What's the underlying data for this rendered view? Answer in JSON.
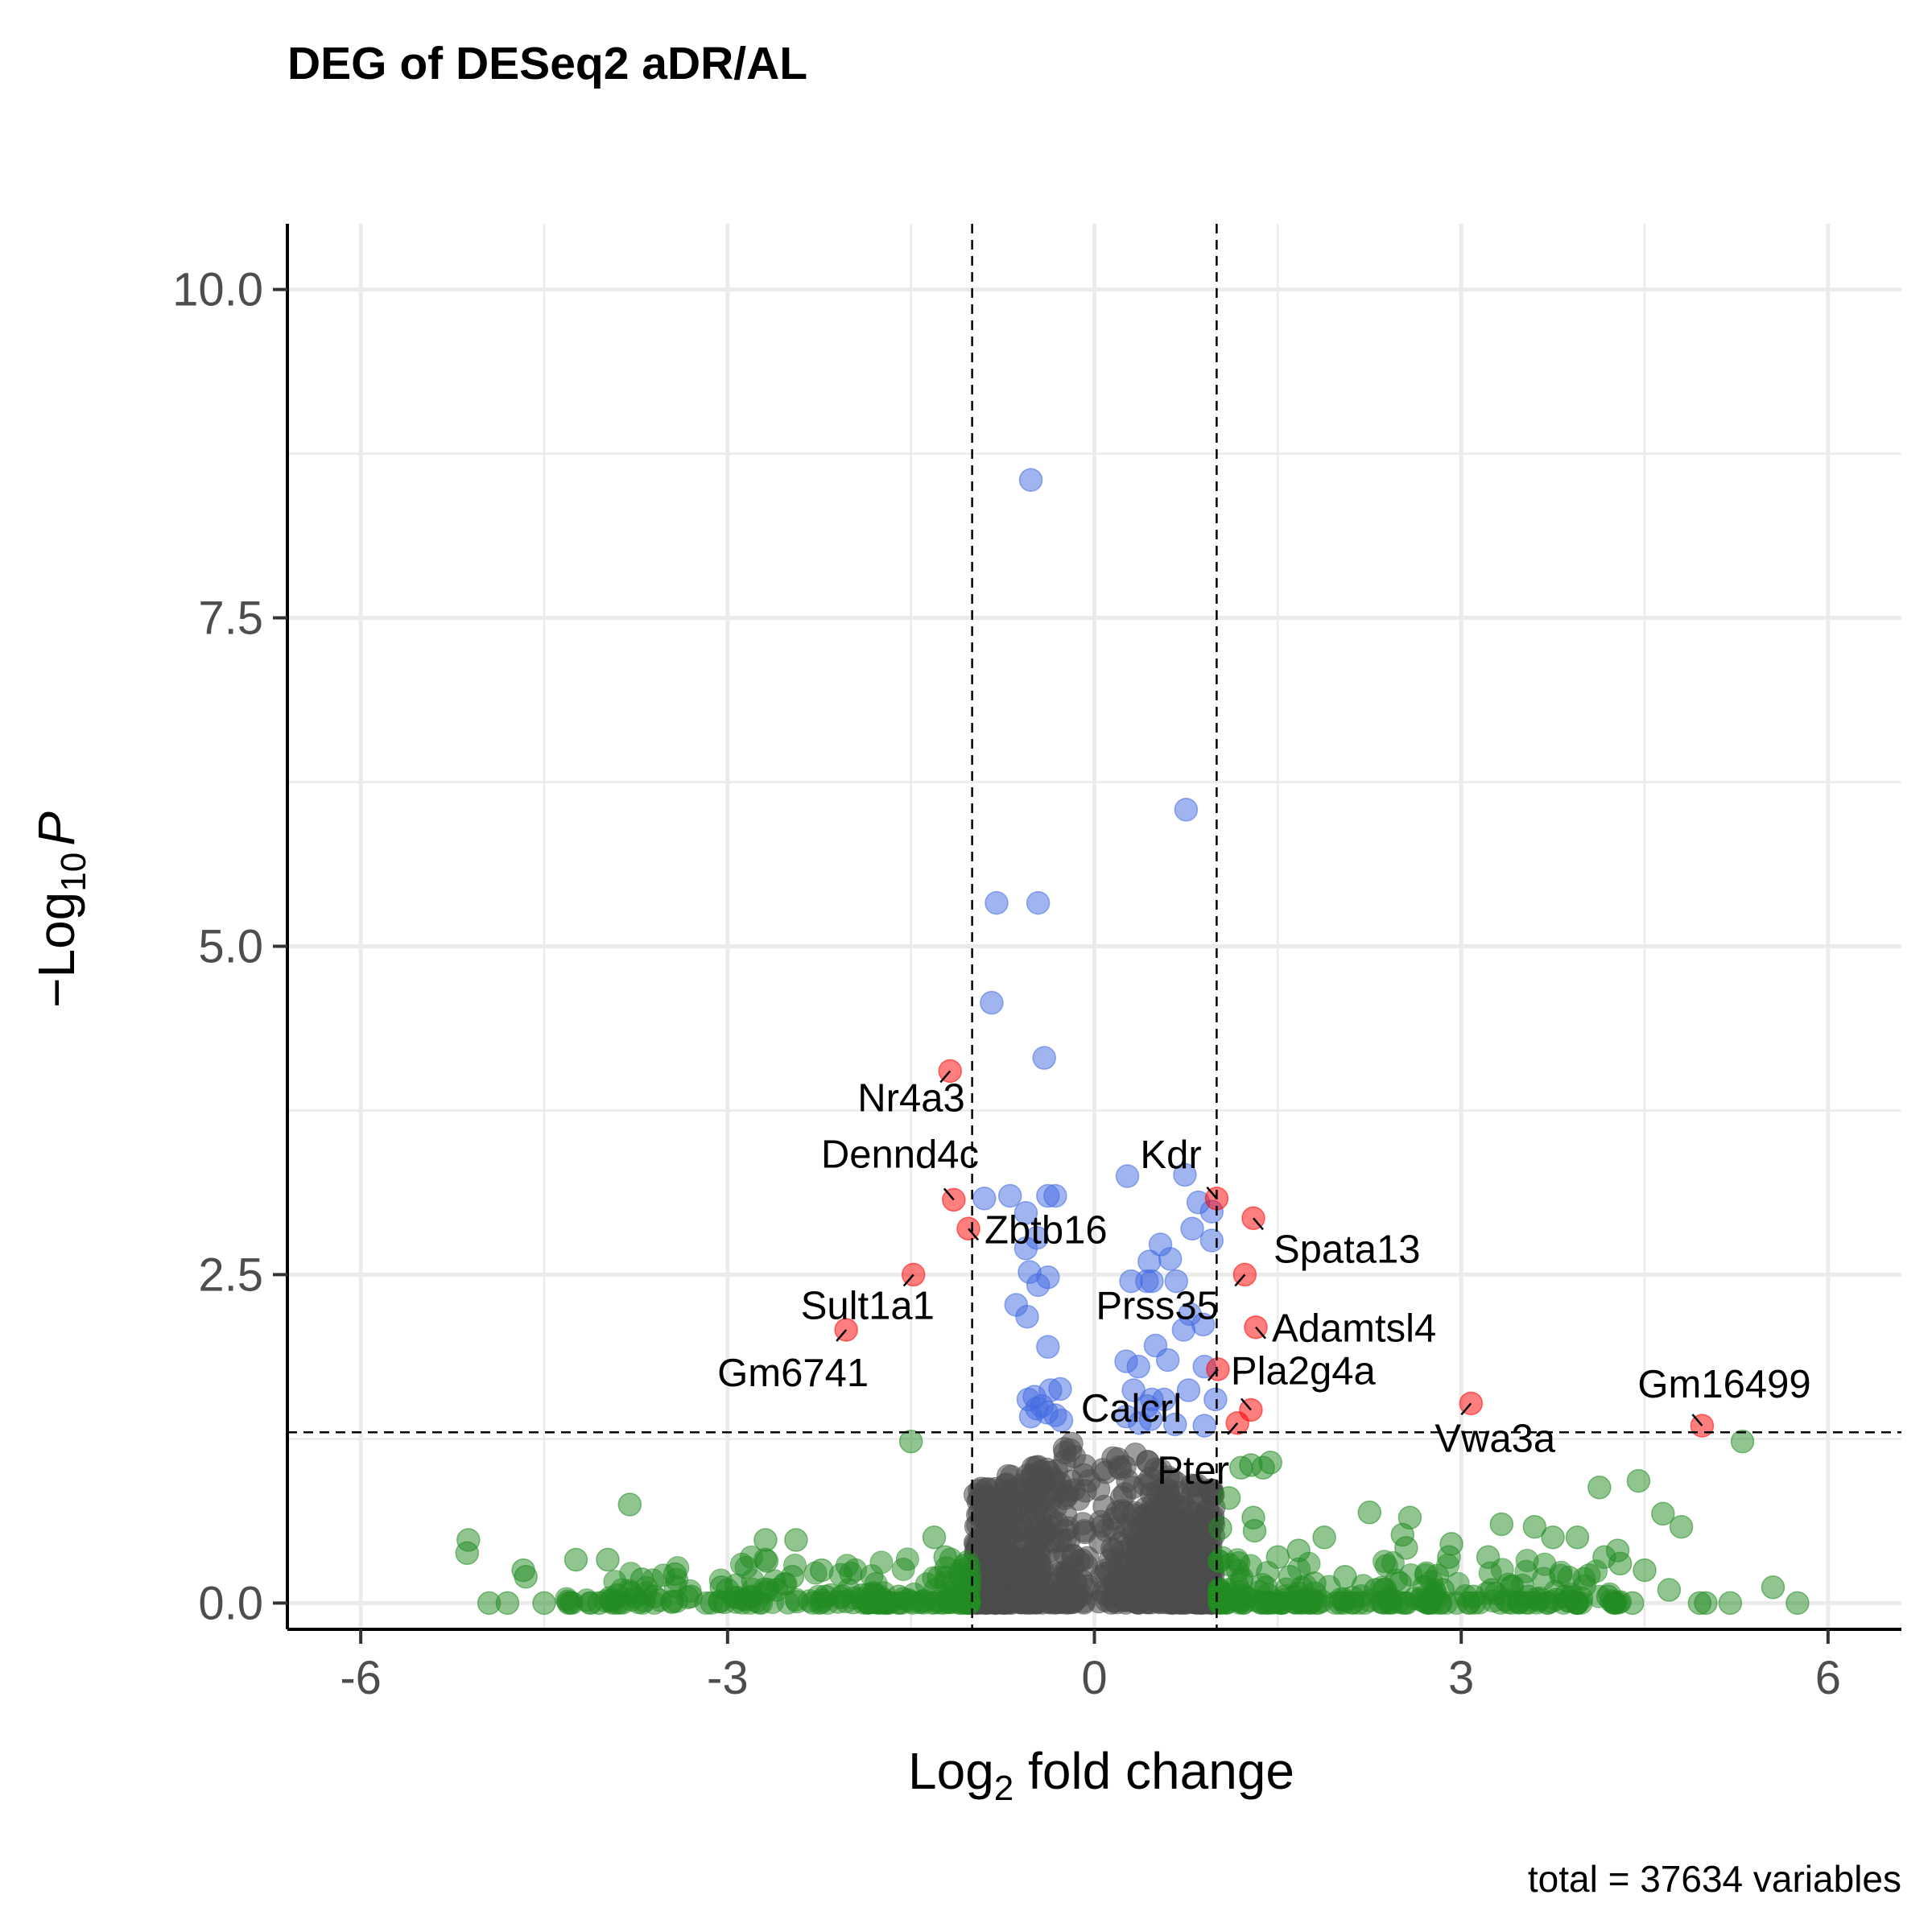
{
  "chart_data": {
    "type": "scatter",
    "title": "DEG of DESeq2 aDR/AL",
    "xlabel": {
      "base": "Log",
      "sub": "2",
      "rest": " fold change"
    },
    "ylabel": {
      "pre": "−Log",
      "sub": "10",
      "italic": "P"
    },
    "caption": "total = 37634 variables",
    "xlim": [
      -6.6,
      6.6
    ],
    "ylim": [
      -0.2,
      10.5
    ],
    "x_ticks": [
      -6,
      -3,
      0,
      3,
      6
    ],
    "x_tick_labels": [
      "-6",
      "-3",
      "0",
      "3",
      "6"
    ],
    "y_ticks": [
      0,
      2.5,
      5,
      7.5,
      10
    ],
    "y_tick_labels": [
      "0.0",
      "2.5",
      "5.0",
      "7.5",
      "10.0"
    ],
    "grid": true,
    "fc_cutoff": [
      -1,
      1
    ],
    "p_cutoff": 1.3,
    "colors": {
      "NS": "#4d4d4d",
      "log2FC": "#228b22",
      "p": "#4169e1",
      "p_and_log2FC": "#ff0000"
    },
    "series": [
      {
        "color": "#ff0000",
        "points": [
          {
            "x": -1.18,
            "y": 4.05
          },
          {
            "x": -1.15,
            "y": 3.07
          },
          {
            "x": -1.03,
            "y": 2.85
          },
          {
            "x": -1.48,
            "y": 2.5
          },
          {
            "x": -2.03,
            "y": 2.08
          },
          {
            "x": 1.0,
            "y": 3.08
          },
          {
            "x": 1.3,
            "y": 2.93
          },
          {
            "x": 1.23,
            "y": 2.5
          },
          {
            "x": 1.32,
            "y": 2.1
          },
          {
            "x": 1.01,
            "y": 1.78
          },
          {
            "x": 1.28,
            "y": 1.47
          },
          {
            "x": 1.17,
            "y": 1.37
          },
          {
            "x": 3.08,
            "y": 1.52
          },
          {
            "x": 4.97,
            "y": 1.35
          }
        ]
      },
      {
        "color": "#4169e1",
        "points": [
          {
            "x": -0.52,
            "y": 8.55
          },
          {
            "x": 0.75,
            "y": 6.04
          },
          {
            "x": -0.8,
            "y": 5.33
          },
          {
            "x": -0.46,
            "y": 5.33
          },
          {
            "x": -0.84,
            "y": 4.57
          },
          {
            "x": -0.41,
            "y": 4.15
          },
          {
            "x": 0.27,
            "y": 3.25
          },
          {
            "x": 0.74,
            "y": 3.26
          },
          {
            "x": -0.9,
            "y": 3.08
          },
          {
            "x": -0.69,
            "y": 3.1
          },
          {
            "x": -0.38,
            "y": 3.1
          },
          {
            "x": -0.32,
            "y": 3.1
          },
          {
            "x": -0.56,
            "y": 2.97
          },
          {
            "x": 0.85,
            "y": 3.05
          },
          {
            "x": 0.96,
            "y": 2.98
          },
          {
            "x": 0.96,
            "y": 2.76
          },
          {
            "x": 0.8,
            "y": 2.85
          },
          {
            "x": -0.56,
            "y": 2.7
          },
          {
            "x": -0.47,
            "y": 2.78
          },
          {
            "x": 0.54,
            "y": 2.73
          },
          {
            "x": 0.62,
            "y": 2.62
          },
          {
            "x": 0.45,
            "y": 2.6
          },
          {
            "x": -0.53,
            "y": 2.52
          },
          {
            "x": -0.38,
            "y": 2.48
          },
          {
            "x": -0.46,
            "y": 2.42
          },
          {
            "x": 0.3,
            "y": 2.45
          },
          {
            "x": 0.43,
            "y": 2.45
          },
          {
            "x": 0.47,
            "y": 2.45
          },
          {
            "x": 0.67,
            "y": 2.45
          },
          {
            "x": -0.64,
            "y": 2.27
          },
          {
            "x": -0.55,
            "y": 2.18
          },
          {
            "x": 0.78,
            "y": 2.2
          },
          {
            "x": 0.89,
            "y": 2.12
          },
          {
            "x": 0.73,
            "y": 2.08
          },
          {
            "x": -0.38,
            "y": 1.95
          },
          {
            "x": 0.5,
            "y": 1.96
          },
          {
            "x": 0.26,
            "y": 1.84
          },
          {
            "x": 0.36,
            "y": 1.8
          },
          {
            "x": 0.6,
            "y": 1.85
          },
          {
            "x": 0.9,
            "y": 1.8
          },
          {
            "x": -0.36,
            "y": 1.62
          },
          {
            "x": -0.28,
            "y": 1.63
          },
          {
            "x": -0.49,
            "y": 1.57
          },
          {
            "x": -0.54,
            "y": 1.55
          },
          {
            "x": 0.32,
            "y": 1.62
          },
          {
            "x": 0.47,
            "y": 1.55
          },
          {
            "x": 0.57,
            "y": 1.55
          },
          {
            "x": 0.77,
            "y": 1.62
          },
          {
            "x": 0.99,
            "y": 1.55
          },
          {
            "x": -0.47,
            "y": 1.48
          },
          {
            "x": -0.39,
            "y": 1.45
          },
          {
            "x": -0.32,
            "y": 1.43
          },
          {
            "x": -0.27,
            "y": 1.39
          },
          {
            "x": -0.52,
            "y": 1.42
          },
          {
            "x": 0.26,
            "y": 1.42
          },
          {
            "x": 0.37,
            "y": 1.37
          },
          {
            "x": 0.46,
            "y": 1.4
          },
          {
            "x": 0.66,
            "y": 1.36
          },
          {
            "x": 0.9,
            "y": 1.35
          },
          {
            "x": -0.43,
            "y": 1.5
          },
          {
            "x": 0.43,
            "y": 1.5
          }
        ]
      },
      {
        "color": "#228b22",
        "points": [
          {
            "x": -5.12,
            "y": 0.48
          },
          {
            "x": -5.13,
            "y": 0.38
          },
          {
            "x": -4.67,
            "y": 0.25
          },
          {
            "x": -4.65,
            "y": 0.2
          },
          {
            "x": -4.24,
            "y": 0.33
          },
          {
            "x": -3.98,
            "y": 0.33
          },
          {
            "x": -3.8,
            "y": 0.75
          },
          {
            "x": -3.7,
            "y": 0.18
          },
          {
            "x": -3.43,
            "y": 0.22
          },
          {
            "x": -3.05,
            "y": 0.12
          },
          {
            "x": -2.69,
            "y": 0.48
          },
          {
            "x": -2.68,
            "y": 0.32
          },
          {
            "x": -2.44,
            "y": 0.48
          },
          {
            "x": -2.47,
            "y": 0.2
          },
          {
            "x": -2.23,
            "y": 0.25
          },
          {
            "x": -1.5,
            "y": 1.23
          },
          {
            "x": -1.31,
            "y": 0.5
          },
          {
            "x": -1.22,
            "y": 0.35
          },
          {
            "x": -1.9,
            "y": 0.06
          },
          {
            "x": -4.95,
            "y": 0.0
          },
          {
            "x": -4.8,
            "y": 0.0
          },
          {
            "x": -4.5,
            "y": 0.0
          },
          {
            "x": -4.3,
            "y": 0.0
          },
          {
            "x": -4.05,
            "y": 0.0
          },
          {
            "x": -3.9,
            "y": 0.06
          },
          {
            "x": -3.6,
            "y": 0.05
          },
          {
            "x": -3.3,
            "y": 0.05
          },
          {
            "x": -3.0,
            "y": 0.1
          },
          {
            "x": -2.8,
            "y": 0.05
          },
          {
            "x": -2.6,
            "y": 0.1
          },
          {
            "x": -2.2,
            "y": 0.05
          },
          {
            "x": -1.6,
            "y": 0.05
          },
          {
            "x": -1.3,
            "y": 0.1
          },
          {
            "x": 1.1,
            "y": 0.8
          },
          {
            "x": 1.2,
            "y": 1.03
          },
          {
            "x": 1.28,
            "y": 1.05
          },
          {
            "x": 1.38,
            "y": 1.03
          },
          {
            "x": 1.44,
            "y": 1.07
          },
          {
            "x": 1.03,
            "y": 0.57
          },
          {
            "x": 1.3,
            "y": 0.65
          },
          {
            "x": 1.31,
            "y": 0.55
          },
          {
            "x": 1.5,
            "y": 0.35
          },
          {
            "x": 1.67,
            "y": 0.4
          },
          {
            "x": 1.88,
            "y": 0.5
          },
          {
            "x": 2.25,
            "y": 0.69
          },
          {
            "x": 2.52,
            "y": 0.52
          },
          {
            "x": 2.58,
            "y": 0.65
          },
          {
            "x": 2.55,
            "y": 0.42
          },
          {
            "x": 2.92,
            "y": 0.45
          },
          {
            "x": 2.9,
            "y": 0.35
          },
          {
            "x": 3.22,
            "y": 0.35
          },
          {
            "x": 3.33,
            "y": 0.6
          },
          {
            "x": 3.6,
            "y": 0.58
          },
          {
            "x": 3.75,
            "y": 0.5
          },
          {
            "x": 3.95,
            "y": 0.5
          },
          {
            "x": 4.13,
            "y": 0.88
          },
          {
            "x": 4.17,
            "y": 0.35
          },
          {
            "x": 4.28,
            "y": 0.4
          },
          {
            "x": 4.45,
            "y": 0.93
          },
          {
            "x": 4.3,
            "y": 0.3
          },
          {
            "x": 4.5,
            "y": 0.25
          },
          {
            "x": 4.65,
            "y": 0.68
          },
          {
            "x": 4.8,
            "y": 0.58
          },
          {
            "x": 5.3,
            "y": 1.23
          },
          {
            "x": 5.55,
            "y": 0.12
          },
          {
            "x": 5.75,
            "y": 0.0
          },
          {
            "x": 5.2,
            "y": 0.0
          },
          {
            "x": 5.0,
            "y": 0.0
          },
          {
            "x": 4.95,
            "y": 0.0
          },
          {
            "x": 4.7,
            "y": 0.1
          },
          {
            "x": 4.4,
            "y": 0.0
          },
          {
            "x": 4.2,
            "y": 0.05
          },
          {
            "x": 3.95,
            "y": 0.0
          },
          {
            "x": 3.85,
            "y": 0.05
          },
          {
            "x": 3.55,
            "y": 0.05
          },
          {
            "x": 3.25,
            "y": 0.1
          },
          {
            "x": 3.1,
            "y": 0.05
          },
          {
            "x": 2.85,
            "y": 0.1
          },
          {
            "x": 2.5,
            "y": 0.15
          },
          {
            "x": 2.3,
            "y": 0.1
          },
          {
            "x": 2.05,
            "y": 0.2
          },
          {
            "x": 1.8,
            "y": 0.15
          },
          {
            "x": 1.6,
            "y": 0.2
          }
        ]
      }
    ],
    "labels": [
      {
        "text": "Nr4a3",
        "x": -1.18,
        "y": 4.05
      },
      {
        "text": "Dennd4c",
        "x": -1.15,
        "y": 3.07
      },
      {
        "text": "Zbtb16",
        "x": -1.03,
        "y": 2.85
      },
      {
        "text": "Sult1a1",
        "x": -1.48,
        "y": 2.5
      },
      {
        "text": "Gm6741",
        "x": -2.03,
        "y": 2.08
      },
      {
        "text": "Kdr",
        "x": 1.0,
        "y": 3.08
      },
      {
        "text": "Spata13",
        "x": 1.3,
        "y": 2.93
      },
      {
        "text": "Prss35",
        "x": 1.23,
        "y": 2.5
      },
      {
        "text": "Adamtsl4",
        "x": 1.32,
        "y": 2.1
      },
      {
        "text": "Pla2g4a",
        "x": 1.28,
        "y": 1.47
      },
      {
        "text": "Calcrl",
        "x": 1.01,
        "y": 1.78
      },
      {
        "text": "Pter",
        "x": 1.17,
        "y": 1.37
      },
      {
        "text": "Vwa3a",
        "x": 3.08,
        "y": 1.52
      },
      {
        "text": "Gm16499",
        "x": 4.97,
        "y": 1.35
      }
    ]
  }
}
